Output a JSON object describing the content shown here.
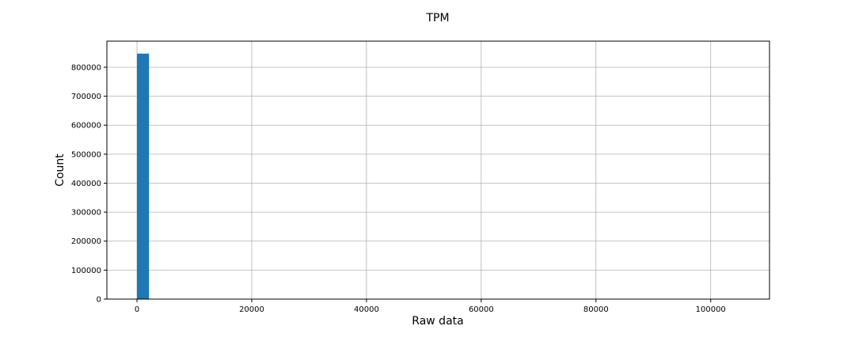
{
  "chart_data": {
    "type": "bar",
    "title": "TPM",
    "xlabel": "Raw data",
    "ylabel": "Count",
    "xlim": [
      -5250,
      110250
    ],
    "ylim": [
      0,
      890000
    ],
    "x_ticks": [
      0,
      20000,
      40000,
      60000,
      80000,
      100000
    ],
    "y_ticks": [
      0,
      100000,
      200000,
      300000,
      400000,
      500000,
      600000,
      700000,
      800000
    ],
    "grid": true,
    "bins": [
      {
        "x_start": 0,
        "x_end": 2100,
        "value": 847000
      }
    ],
    "colors": {
      "bar": "#1f77b4",
      "grid": "#b0b0b0",
      "axis": "#000000"
    }
  }
}
